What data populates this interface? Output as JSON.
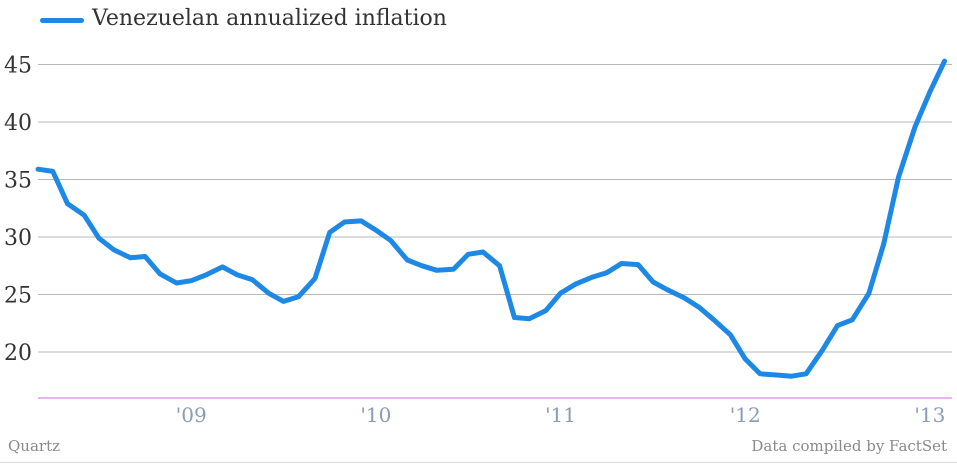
{
  "chart_data": {
    "type": "line",
    "legend": {
      "placement": "top-left"
    },
    "series": [
      {
        "name": "Venezuelan annualized inflation",
        "color": "#1e88e5",
        "points": [
          [
            2008.17,
            35.9
          ],
          [
            2008.25,
            35.7
          ],
          [
            2008.33,
            32.9
          ],
          [
            2008.42,
            31.9
          ],
          [
            2008.5,
            29.9
          ],
          [
            2008.58,
            28.9
          ],
          [
            2008.67,
            28.2
          ],
          [
            2008.75,
            28.3
          ],
          [
            2008.83,
            26.8
          ],
          [
            2008.92,
            26.0
          ],
          [
            2009.0,
            26.2
          ],
          [
            2009.08,
            26.7
          ],
          [
            2009.17,
            27.4
          ],
          [
            2009.25,
            26.7
          ],
          [
            2009.33,
            26.3
          ],
          [
            2009.42,
            25.1
          ],
          [
            2009.5,
            24.4
          ],
          [
            2009.58,
            24.8
          ],
          [
            2009.67,
            26.4
          ],
          [
            2009.75,
            30.4
          ],
          [
            2009.83,
            31.3
          ],
          [
            2009.92,
            31.4
          ],
          [
            2010.0,
            30.6
          ],
          [
            2010.08,
            29.7
          ],
          [
            2010.17,
            28.0
          ],
          [
            2010.25,
            27.5
          ],
          [
            2010.33,
            27.1
          ],
          [
            2010.42,
            27.2
          ],
          [
            2010.5,
            28.5
          ],
          [
            2010.58,
            28.7
          ],
          [
            2010.67,
            27.5
          ],
          [
            2010.75,
            23.0
          ],
          [
            2010.83,
            22.9
          ],
          [
            2010.92,
            23.6
          ],
          [
            2011.0,
            25.1
          ],
          [
            2011.08,
            25.9
          ],
          [
            2011.17,
            26.5
          ],
          [
            2011.25,
            26.9
          ],
          [
            2011.33,
            27.7
          ],
          [
            2011.42,
            27.6
          ],
          [
            2011.5,
            26.1
          ],
          [
            2011.58,
            25.4
          ],
          [
            2011.67,
            24.7
          ],
          [
            2011.75,
            23.9
          ],
          [
            2011.83,
            22.8
          ],
          [
            2011.92,
            21.5
          ],
          [
            2012.0,
            19.4
          ],
          [
            2012.08,
            18.1
          ],
          [
            2012.17,
            18.0
          ],
          [
            2012.25,
            17.9
          ],
          [
            2012.33,
            18.1
          ],
          [
            2012.42,
            20.2
          ],
          [
            2012.5,
            22.3
          ],
          [
            2012.58,
            22.8
          ],
          [
            2012.67,
            25.1
          ],
          [
            2012.75,
            29.4
          ],
          [
            2012.83,
            35.2
          ],
          [
            2012.92,
            39.6
          ],
          [
            2013.0,
            42.6
          ],
          [
            2013.08,
            45.3
          ]
        ]
      }
    ],
    "y_ticks": [
      20,
      25,
      30,
      35,
      40,
      45
    ],
    "x_ticks": [
      {
        "value": 2009.0,
        "label": "'09"
      },
      {
        "value": 2010.0,
        "label": "'10"
      },
      {
        "value": 2011.0,
        "label": "'11"
      },
      {
        "value": 2012.0,
        "label": "'12"
      },
      {
        "value": 2013.0,
        "label": "'13"
      }
    ],
    "xlim": [
      2008.17,
      2013.12
    ],
    "ylim": [
      16,
      48
    ],
    "grid": true,
    "colors": {
      "grid": "#b8b8b8",
      "baseline": "#c86dd7",
      "tick_label_y": "#333333",
      "tick_label_x": "#8a9bb5"
    }
  },
  "footer": {
    "source_left": "Quartz",
    "source_right": "Data compiled by FactSet"
  }
}
